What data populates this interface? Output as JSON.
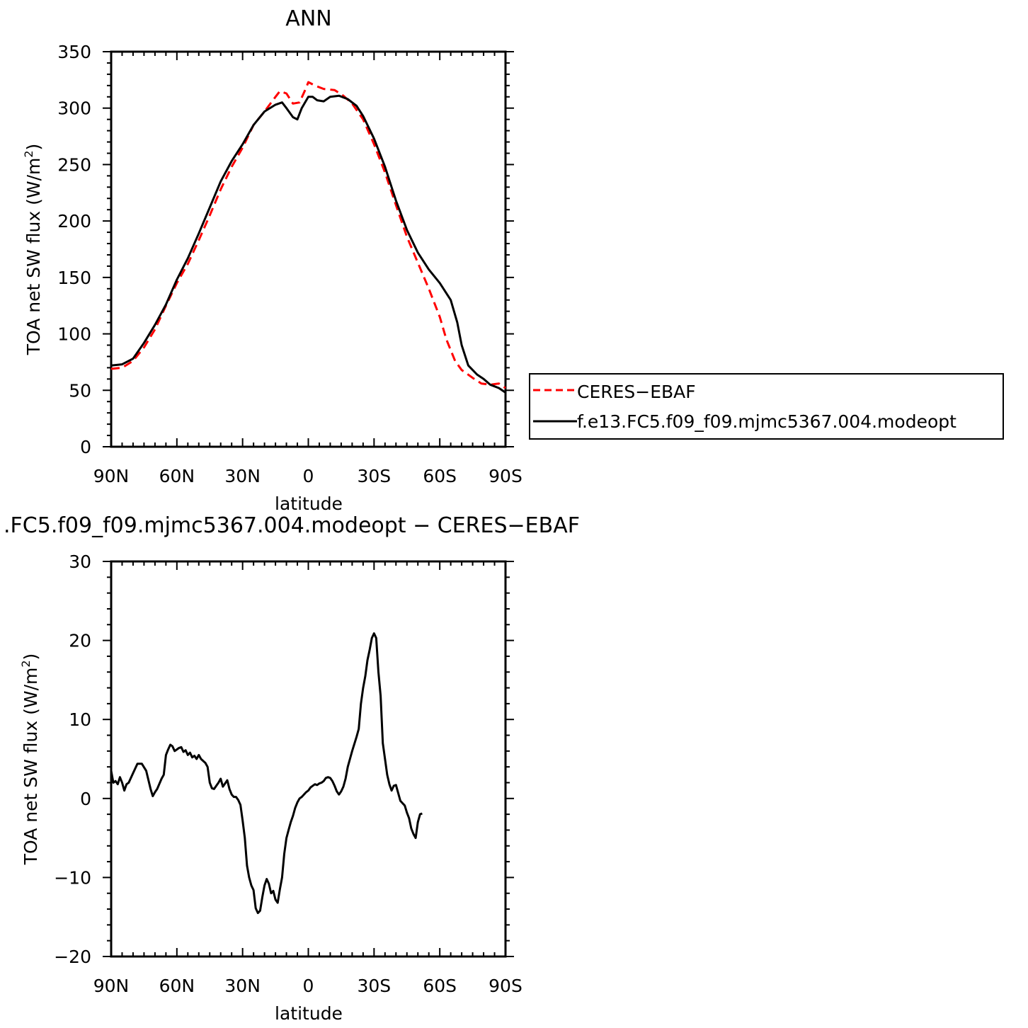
{
  "chart_data": [
    {
      "type": "line",
      "title": "ANN",
      "xlabel": "latitude",
      "ylabel_main": "TOA net SW flux (W/m",
      "ylabel_sup": "2",
      "ylabel_close": ")",
      "xlim": [
        90,
        -90
      ],
      "ylim": [
        0,
        350
      ],
      "x_ticks": [
        {
          "v": 90,
          "label": "90N"
        },
        {
          "v": 60,
          "label": "60N"
        },
        {
          "v": 30,
          "label": "30N"
        },
        {
          "v": 0,
          "label": "0"
        },
        {
          "v": -30,
          "label": "30S"
        },
        {
          "v": -60,
          "label": "60S"
        },
        {
          "v": -90,
          "label": "90S"
        }
      ],
      "y_ticks": [
        0,
        50,
        100,
        150,
        200,
        250,
        300,
        350
      ],
      "legend_position": "right",
      "series": [
        {
          "name": "CERES−EBAF",
          "color": "#ff0000",
          "dash": true,
          "points": [
            [
              90,
              69
            ],
            [
              85,
              70
            ],
            [
              80,
              76
            ],
            [
              75,
              88
            ],
            [
              70,
              104
            ],
            [
              65,
              125
            ],
            [
              60,
              145
            ],
            [
              55,
              162
            ],
            [
              50,
              183
            ],
            [
              45,
              205
            ],
            [
              40,
              228
            ],
            [
              35,
              248
            ],
            [
              30,
              265
            ],
            [
              25,
              285
            ],
            [
              20,
              297
            ],
            [
              15,
              310
            ],
            [
              13,
              315
            ],
            [
              10,
              313
            ],
            [
              7,
              304
            ],
            [
              4,
              305
            ],
            [
              1,
              318
            ],
            [
              0,
              323
            ],
            [
              -3,
              320
            ],
            [
              -7,
              317
            ],
            [
              -12,
              316
            ],
            [
              -16,
              311
            ],
            [
              -20,
              304
            ],
            [
              -25,
              290
            ],
            [
              -30,
              268
            ],
            [
              -35,
              243
            ],
            [
              -40,
              214
            ],
            [
              -45,
              186
            ],
            [
              -50,
              163
            ],
            [
              -55,
              140
            ],
            [
              -60,
              115
            ],
            [
              -63,
              95
            ],
            [
              -67,
              76
            ],
            [
              -70,
              68
            ],
            [
              -75,
              61
            ],
            [
              -79,
              56
            ],
            [
              -83,
              55
            ],
            [
              -87,
              56
            ],
            [
              -90,
              52
            ]
          ]
        },
        {
          "name": "f.e13.FC5.f09_f09.mjmc5367.004.modeopt",
          "color": "#000000",
          "dash": false,
          "points": [
            [
              90,
              72
            ],
            [
              85,
              73
            ],
            [
              80,
              78
            ],
            [
              75,
              92
            ],
            [
              70,
              108
            ],
            [
              65,
              126
            ],
            [
              60,
              148
            ],
            [
              55,
              167
            ],
            [
              50,
              189
            ],
            [
              45,
              212
            ],
            [
              40,
              235
            ],
            [
              35,
              253
            ],
            [
              30,
              268
            ],
            [
              25,
              285
            ],
            [
              20,
              297
            ],
            [
              15,
              303
            ],
            [
              12,
              305
            ],
            [
              10,
              300
            ],
            [
              7,
              292
            ],
            [
              5,
              290
            ],
            [
              3,
              300
            ],
            [
              0,
              310
            ],
            [
              -2,
              310
            ],
            [
              -4,
              307
            ],
            [
              -7,
              306
            ],
            [
              -10,
              310
            ],
            [
              -14,
              311
            ],
            [
              -18,
              308
            ],
            [
              -22,
              302
            ],
            [
              -25,
              293
            ],
            [
              -30,
              273
            ],
            [
              -35,
              248
            ],
            [
              -40,
              218
            ],
            [
              -45,
              192
            ],
            [
              -50,
              172
            ],
            [
              -55,
              157
            ],
            [
              -60,
              145
            ],
            [
              -65,
              130
            ],
            [
              -68,
              110
            ],
            [
              -70,
              90
            ],
            [
              -73,
              72
            ],
            [
              -77,
              64
            ],
            [
              -80,
              60
            ],
            [
              -83,
              55
            ],
            [
              -87,
              52
            ],
            [
              -90,
              48
            ]
          ]
        }
      ]
    },
    {
      "type": "line",
      "title": ".FC5.f09_f09.mjmc5367.004.modeopt − CERES−EBAF",
      "xlabel": "latitude",
      "ylabel_main": "TOA net SW flux (W/m",
      "ylabel_sup": "2",
      "ylabel_close": ")",
      "xlim": [
        90,
        -90
      ],
      "ylim": [
        -20,
        30
      ],
      "x_ticks": [
        {
          "v": 90,
          "label": "90N"
        },
        {
          "v": 60,
          "label": "60N"
        },
        {
          "v": 30,
          "label": "30N"
        },
        {
          "v": 0,
          "label": "0"
        },
        {
          "v": -30,
          "label": "30S"
        },
        {
          "v": -60,
          "label": "60S"
        },
        {
          "v": -90,
          "label": "90S"
        }
      ],
      "y_tick_labels": [
        {
          "v": 30,
          "label": "30"
        },
        {
          "v": 20,
          "label": "20"
        },
        {
          "v": 10,
          "label": "10"
        },
        {
          "v": 0,
          "label": "0"
        },
        {
          "v": -10,
          "label": "−10"
        },
        {
          "v": -20,
          "label": "−20"
        }
      ],
      "series": [
        {
          "name": "",
          "color": "#000000",
          "dash": false,
          "points": [
            [
              90,
              3.5
            ],
            [
              89,
              2
            ],
            [
              88,
              2.2
            ],
            [
              87,
              1.8
            ],
            [
              86,
              2.7
            ],
            [
              85,
              2
            ],
            [
              84,
              1
            ],
            [
              83,
              1.8
            ],
            [
              82,
              2
            ],
            [
              80,
              3.2
            ],
            [
              78,
              4.4
            ],
            [
              76,
              4.4
            ],
            [
              74,
              3.5
            ],
            [
              72,
              1.2
            ],
            [
              71,
              0.3
            ],
            [
              70,
              0.8
            ],
            [
              69,
              1.2
            ],
            [
              67,
              2.5
            ],
            [
              66,
              3
            ],
            [
              65,
              5.5
            ],
            [
              64,
              6.2
            ],
            [
              63,
              6.8
            ],
            [
              62,
              6.6
            ],
            [
              61,
              6
            ],
            [
              60,
              6.2
            ],
            [
              59,
              6.4
            ],
            [
              58,
              6.5
            ],
            [
              57,
              5.9
            ],
            [
              56,
              6.1
            ],
            [
              55,
              5.5
            ],
            [
              54,
              5.8
            ],
            [
              53,
              5.2
            ],
            [
              52,
              5.4
            ],
            [
              51,
              5
            ],
            [
              50,
              5.5
            ],
            [
              49,
              5
            ],
            [
              47,
              4.5
            ],
            [
              46,
              4
            ],
            [
              45,
              2
            ],
            [
              44,
              1.3
            ],
            [
              43,
              1.2
            ],
            [
              42,
              1.6
            ],
            [
              41,
              2
            ],
            [
              40,
              2.5
            ],
            [
              39,
              1.5
            ],
            [
              38,
              1.9
            ],
            [
              37,
              2.3
            ],
            [
              36,
              1.2
            ],
            [
              35,
              0.5
            ],
            [
              34,
              0.2
            ],
            [
              33,
              0.2
            ],
            [
              32,
              -0.2
            ],
            [
              31,
              -0.8
            ],
            [
              30,
              -2.8
            ],
            [
              29,
              -5
            ],
            [
              28,
              -8.5
            ],
            [
              27,
              -10
            ],
            [
              26,
              -11
            ],
            [
              25,
              -11.6
            ],
            [
              24,
              -13.9
            ],
            [
              23,
              -14.5
            ],
            [
              22,
              -14.2
            ],
            [
              21,
              -12.5
            ],
            [
              20,
              -11
            ],
            [
              19,
              -10.2
            ],
            [
              18,
              -10.8
            ],
            [
              17,
              -12
            ],
            [
              16,
              -11.7
            ],
            [
              15,
              -12.8
            ],
            [
              14,
              -13.2
            ],
            [
              13,
              -11.5
            ],
            [
              12,
              -10
            ],
            [
              11,
              -7
            ],
            [
              10,
              -5
            ],
            [
              9,
              -4
            ],
            [
              8,
              -3
            ],
            [
              7,
              -2.2
            ],
            [
              6,
              -1.2
            ],
            [
              5,
              -0.5
            ],
            [
              4,
              0
            ],
            [
              3,
              0.2
            ],
            [
              2,
              0.5
            ],
            [
              1,
              0.8
            ],
            [
              0,
              1
            ],
            [
              -1,
              1.4
            ],
            [
              -2,
              1.6
            ],
            [
              -3,
              1.8
            ],
            [
              -4,
              1.7
            ],
            [
              -5,
              1.9
            ],
            [
              -6,
              2
            ],
            [
              -7,
              2.2
            ],
            [
              -8,
              2.6
            ],
            [
              -9,
              2.7
            ],
            [
              -10,
              2.6
            ],
            [
              -11,
              2.2
            ],
            [
              -12,
              1.6
            ],
            [
              -13,
              0.9
            ],
            [
              -14,
              0.5
            ],
            [
              -15,
              0.9
            ],
            [
              -16,
              1.5
            ],
            [
              -17,
              2.5
            ],
            [
              -18,
              4
            ],
            [
              -19,
              5
            ],
            [
              -20,
              6
            ],
            [
              -22,
              7.8
            ],
            [
              -23,
              8.8
            ],
            [
              -24,
              12
            ],
            [
              -25,
              14
            ],
            [
              -26,
              15.5
            ],
            [
              -27,
              17.5
            ],
            [
              -28,
              18.8
            ],
            [
              -29,
              20.3
            ],
            [
              -30,
              20.9
            ],
            [
              -31,
              20.3
            ],
            [
              -32,
              16
            ],
            [
              -33,
              13
            ],
            [
              -34,
              7
            ],
            [
              -35,
              5
            ],
            [
              -36,
              3
            ],
            [
              -37,
              1.8
            ],
            [
              -38,
              1
            ],
            [
              -39,
              1.6
            ],
            [
              -40,
              1.7
            ],
            [
              -41,
              0.7
            ],
            [
              -42,
              -0.3
            ],
            [
              -43,
              -0.6
            ],
            [
              -44,
              -0.9
            ],
            [
              -45,
              -1.8
            ],
            [
              -46,
              -2.5
            ],
            [
              -47,
              -3.8
            ],
            [
              -48,
              -4.5
            ],
            [
              -49,
              -5
            ],
            [
              -50,
              -3
            ],
            [
              -51,
              -2
            ],
            [
              -52,
              -1.9
            ]
          ]
        }
      ]
    }
  ]
}
